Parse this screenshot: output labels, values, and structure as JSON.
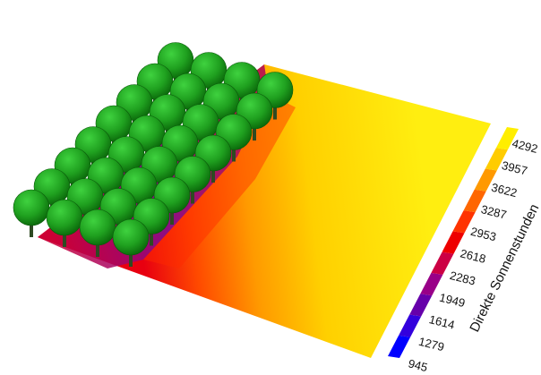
{
  "legend": {
    "title": "Direkte Sonnenstunden",
    "ticks": [
      "945",
      "1279",
      "1614",
      "1949",
      "2283",
      "2618",
      "2953",
      "3287",
      "3622",
      "3957",
      "4292"
    ]
  },
  "colors": {
    "scale": [
      "#0000ff",
      "#3300dd",
      "#6600aa",
      "#990088",
      "#cc0044",
      "#ee0000",
      "#ff3300",
      "#ff6600",
      "#ff9900",
      "#ffcc00",
      "#ffee00"
    ],
    "tree_crown": "#1fa01f",
    "tree_trunk": "#2e4a22",
    "shadow_edge": "#ff7a00",
    "field_base": "#ffe81a"
  },
  "trees": {
    "rows": 4,
    "cols": 8
  }
}
